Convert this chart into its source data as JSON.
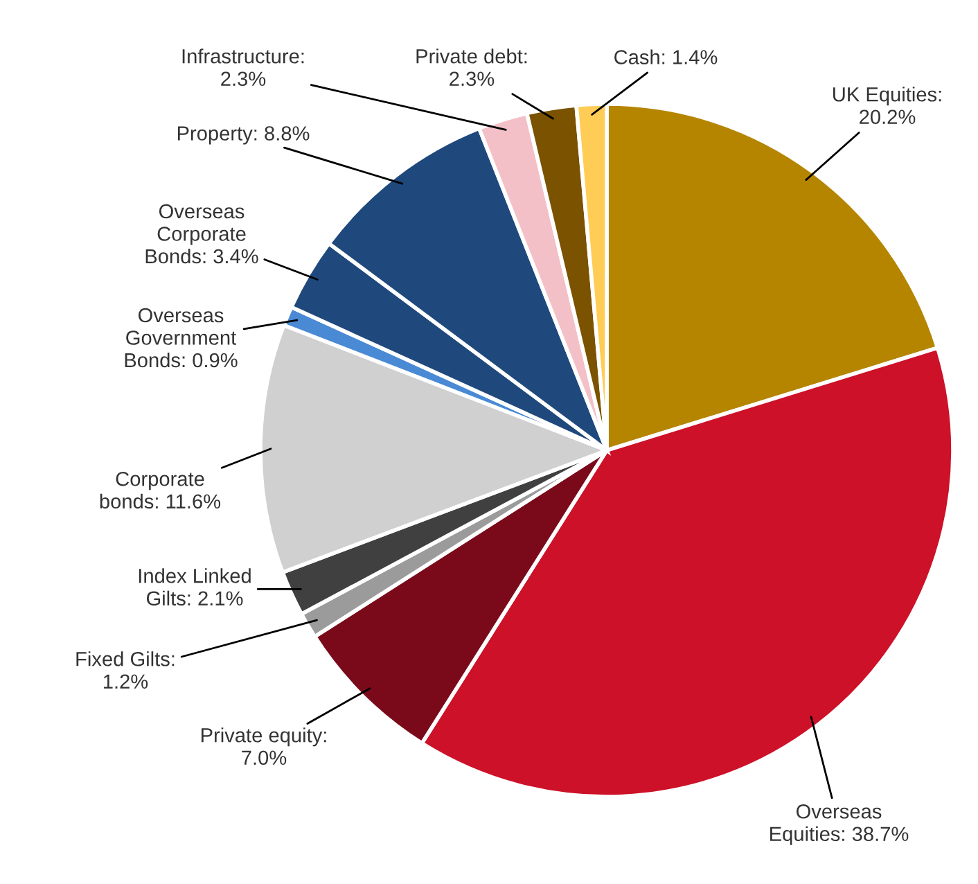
{
  "chart_data": {
    "type": "pie",
    "categories": [
      "UK Equities:\n20.2%",
      "Overseas\nEquities: 38.7%",
      "Private equity:\n7.0%",
      "Fixed Gilts:\n1.2%",
      "Index Linked\nGilts: 2.1%",
      "Corporate\nbonds: 11.6%",
      "Overseas\nGovernment\nBonds: 0.9%",
      "Overseas\nCorporate\nBonds: 3.4%",
      "Property: 8.8%",
      "Infrastructure:\n2.3%",
      "Private debt:\n2.3%",
      "Cash: 1.4%"
    ],
    "values": [
      20.2,
      38.7,
      7.0,
      1.2,
      2.1,
      11.6,
      0.9,
      3.4,
      8.8,
      2.3,
      2.3,
      1.4
    ],
    "colors": [
      "#b58500",
      "#cc1128",
      "#7a0a1a",
      "#9b9b9b",
      "#404040",
      "#d0d0d0",
      "#4a8ad4",
      "#1f497d",
      "#1f497d",
      "#f4c0c8",
      "#7a5200",
      "#ffcc55"
    ]
  }
}
